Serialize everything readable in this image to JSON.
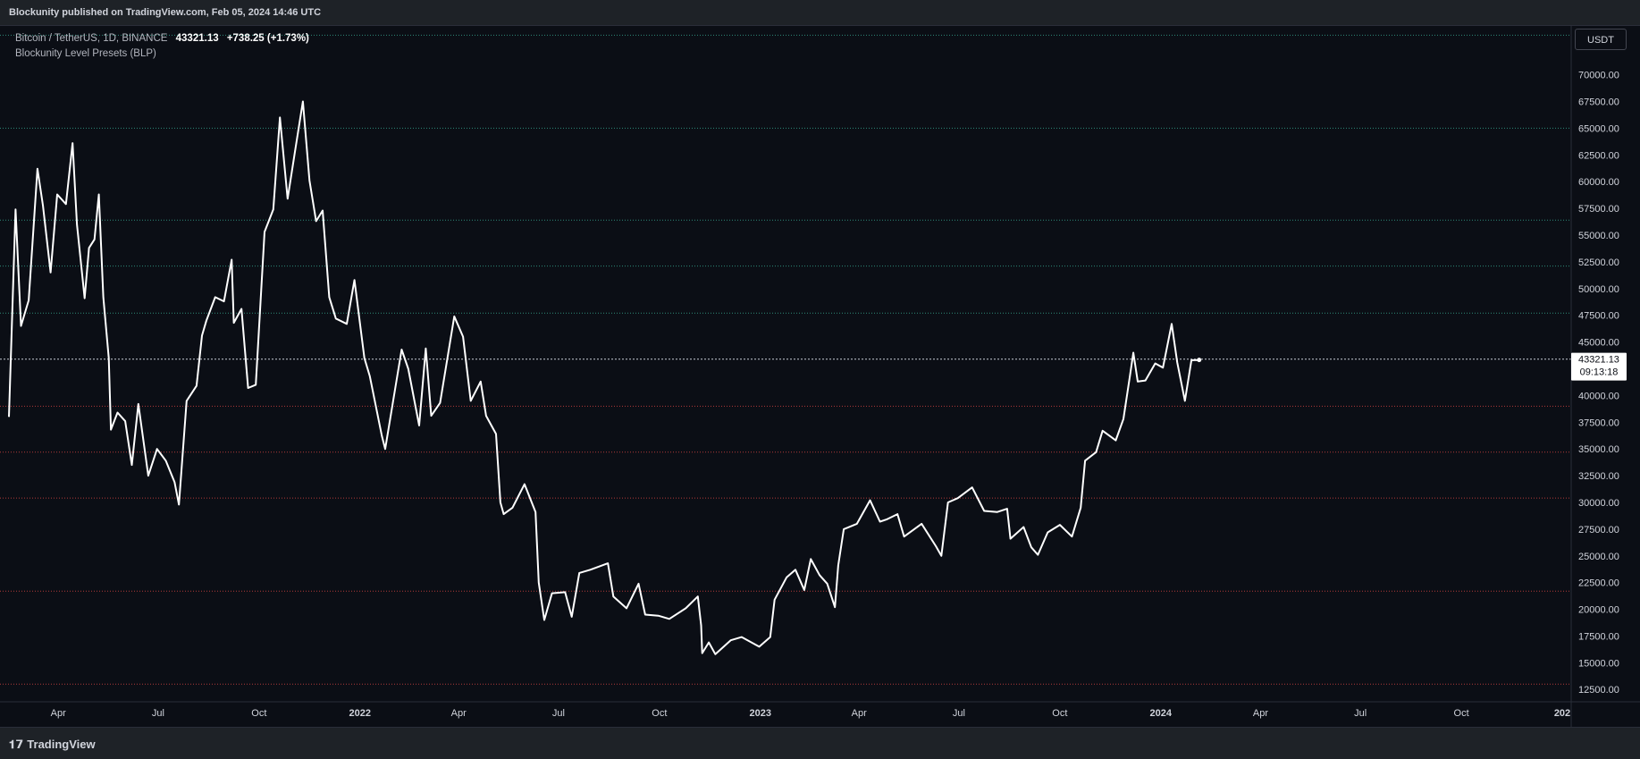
{
  "header": {
    "published": "Blockunity published on TradingView.com, Feb 05, 2024 14:46 UTC"
  },
  "legend": {
    "symbol": "Bitcoin / TetherUS, 1D, BINANCE",
    "price": "43321.13",
    "change": "+738.25 (+1.73%)",
    "indicator": "Blockunity Level Presets (BLP)"
  },
  "currency_button": "USDT",
  "price_tag": {
    "price": "43321.13",
    "countdown": "09:13:18"
  },
  "footer": {
    "brand": "TradingView",
    "icon": "tradingview-logo-icon"
  },
  "colors": {
    "background": "#0b0e15",
    "line": "#ffffff",
    "level_green": "#2e8b7a",
    "level_red": "#b23a3a",
    "axis_text": "#d1d4dc"
  },
  "chart_data": {
    "type": "line",
    "series": [
      {
        "values": [
          [
            "2021-02-15",
            38000
          ],
          [
            "2021-02-21",
            57400
          ],
          [
            "2021-02-26",
            46500
          ],
          [
            "2021-03-05",
            48900
          ],
          [
            "2021-03-13",
            61200
          ],
          [
            "2021-03-18",
            57800
          ],
          [
            "2021-03-25",
            51500
          ],
          [
            "2021-03-31",
            58800
          ],
          [
            "2021-04-08",
            57900
          ],
          [
            "2021-04-14",
            63600
          ],
          [
            "2021-04-18",
            56000
          ],
          [
            "2021-04-25",
            49100
          ],
          [
            "2021-04-29",
            53800
          ],
          [
            "2021-05-04",
            54600
          ],
          [
            "2021-05-08",
            58800
          ],
          [
            "2021-05-12",
            49200
          ],
          [
            "2021-05-17",
            43500
          ],
          [
            "2021-05-19",
            36800
          ],
          [
            "2021-05-25",
            38400
          ],
          [
            "2021-06-01",
            37600
          ],
          [
            "2021-06-07",
            33500
          ],
          [
            "2021-06-13",
            39200
          ],
          [
            "2021-06-22",
            32500
          ],
          [
            "2021-06-30",
            35000
          ],
          [
            "2021-07-08",
            33900
          ],
          [
            "2021-07-16",
            31900
          ],
          [
            "2021-07-20",
            29800
          ],
          [
            "2021-07-27",
            39500
          ],
          [
            "2021-08-05",
            40900
          ],
          [
            "2021-08-10",
            45600
          ],
          [
            "2021-08-14",
            47000
          ],
          [
            "2021-08-22",
            49200
          ],
          [
            "2021-08-30",
            48800
          ],
          [
            "2021-09-06",
            52700
          ],
          [
            "2021-09-08",
            46800
          ],
          [
            "2021-09-15",
            48100
          ],
          [
            "2021-09-21",
            40700
          ],
          [
            "2021-09-28",
            41000
          ],
          [
            "2021-10-06",
            55300
          ],
          [
            "2021-10-14",
            57400
          ],
          [
            "2021-10-20",
            66000
          ],
          [
            "2021-10-27",
            58400
          ],
          [
            "2021-11-03",
            63000
          ],
          [
            "2021-11-10",
            67500
          ],
          [
            "2021-11-16",
            60100
          ],
          [
            "2021-11-22",
            56300
          ],
          [
            "2021-11-28",
            57300
          ],
          [
            "2021-12-04",
            49200
          ],
          [
            "2021-12-10",
            47200
          ],
          [
            "2021-12-20",
            46700
          ],
          [
            "2021-12-27",
            50800
          ],
          [
            "2022-01-05",
            43500
          ],
          [
            "2022-01-10",
            41800
          ],
          [
            "2022-01-21",
            36200
          ],
          [
            "2022-01-24",
            35000
          ],
          [
            "2022-02-08",
            44300
          ],
          [
            "2022-02-14",
            42500
          ],
          [
            "2022-02-24",
            37200
          ],
          [
            "2022-03-02",
            44400
          ],
          [
            "2022-03-07",
            38100
          ],
          [
            "2022-03-15",
            39300
          ],
          [
            "2022-03-28",
            47400
          ],
          [
            "2022-04-05",
            45500
          ],
          [
            "2022-04-12",
            39500
          ],
          [
            "2022-04-21",
            41300
          ],
          [
            "2022-04-26",
            38100
          ],
          [
            "2022-05-05",
            36400
          ],
          [
            "2022-05-09",
            30000
          ],
          [
            "2022-05-12",
            28900
          ],
          [
            "2022-05-20",
            29500
          ],
          [
            "2022-05-31",
            31700
          ],
          [
            "2022-06-10",
            29100
          ],
          [
            "2022-06-13",
            22500
          ],
          [
            "2022-06-18",
            19000
          ],
          [
            "2022-06-25",
            21500
          ],
          [
            "2022-07-07",
            21600
          ],
          [
            "2022-07-13",
            19300
          ],
          [
            "2022-07-20",
            23400
          ],
          [
            "2022-07-30",
            23700
          ],
          [
            "2022-08-15",
            24300
          ],
          [
            "2022-08-20",
            21200
          ],
          [
            "2022-09-01",
            20100
          ],
          [
            "2022-09-12",
            22400
          ],
          [
            "2022-09-18",
            19500
          ],
          [
            "2022-09-30",
            19400
          ],
          [
            "2022-10-10",
            19100
          ],
          [
            "2022-10-25",
            20100
          ],
          [
            "2022-11-05",
            21200
          ],
          [
            "2022-11-08",
            18500
          ],
          [
            "2022-11-09",
            15900
          ],
          [
            "2022-11-15",
            16900
          ],
          [
            "2022-11-21",
            15800
          ],
          [
            "2022-12-05",
            17100
          ],
          [
            "2022-12-15",
            17400
          ],
          [
            "2022-12-31",
            16500
          ],
          [
            "2023-01-10",
            17400
          ],
          [
            "2023-01-14",
            20900
          ],
          [
            "2023-01-25",
            23000
          ],
          [
            "2023-02-02",
            23700
          ],
          [
            "2023-02-10",
            21800
          ],
          [
            "2023-02-16",
            24700
          ],
          [
            "2023-02-24",
            23200
          ],
          [
            "2023-03-03",
            22400
          ],
          [
            "2023-03-10",
            20200
          ],
          [
            "2023-03-13",
            24100
          ],
          [
            "2023-03-18",
            27500
          ],
          [
            "2023-03-30",
            28000
          ],
          [
            "2023-04-11",
            30200
          ],
          [
            "2023-04-20",
            28200
          ],
          [
            "2023-04-26",
            28400
          ],
          [
            "2023-05-06",
            28900
          ],
          [
            "2023-05-12",
            26800
          ],
          [
            "2023-05-28",
            28000
          ],
          [
            "2023-06-10",
            25900
          ],
          [
            "2023-06-15",
            25000
          ],
          [
            "2023-06-21",
            30000
          ],
          [
            "2023-06-30",
            30400
          ],
          [
            "2023-07-13",
            31400
          ],
          [
            "2023-07-24",
            29200
          ],
          [
            "2023-08-05",
            29100
          ],
          [
            "2023-08-14",
            29400
          ],
          [
            "2023-08-17",
            26600
          ],
          [
            "2023-08-29",
            27700
          ],
          [
            "2023-09-05",
            25800
          ],
          [
            "2023-09-11",
            25100
          ],
          [
            "2023-09-20",
            27200
          ],
          [
            "2023-10-01",
            27900
          ],
          [
            "2023-10-12",
            26800
          ],
          [
            "2023-10-20",
            29500
          ],
          [
            "2023-10-24",
            33900
          ],
          [
            "2023-11-03",
            34700
          ],
          [
            "2023-11-09",
            36700
          ],
          [
            "2023-11-21",
            35800
          ],
          [
            "2023-11-28",
            37800
          ],
          [
            "2023-12-04",
            41900
          ],
          [
            "2023-12-07",
            44000
          ],
          [
            "2023-12-11",
            41300
          ],
          [
            "2023-12-18",
            41400
          ],
          [
            "2023-12-27",
            43000
          ],
          [
            "2024-01-03",
            42600
          ],
          [
            "2024-01-11",
            46700
          ],
          [
            "2024-01-16",
            43100
          ],
          [
            "2024-01-23",
            39500
          ],
          [
            "2024-01-29",
            43300
          ],
          [
            "2024-02-05",
            43321
          ]
        ]
      }
    ],
    "y_ticks": [
      "12500.00",
      "15000.00",
      "17500.00",
      "20000.00",
      "22500.00",
      "25000.00",
      "27500.00",
      "30000.00",
      "32500.00",
      "35000.00",
      "37500.00",
      "40000.00",
      "42500.00",
      "45000.00",
      "47500.00",
      "50000.00",
      "52500.00",
      "55000.00",
      "57500.00",
      "60000.00",
      "62500.00",
      "65000.00",
      "67500.00",
      "70000.00"
    ],
    "x_ticks": [
      {
        "date": "2021-04-01",
        "label": "Apr",
        "bold": false
      },
      {
        "date": "2021-07-01",
        "label": "Jul",
        "bold": false
      },
      {
        "date": "2021-10-01",
        "label": "Oct",
        "bold": false
      },
      {
        "date": "2022-01-01",
        "label": "2022",
        "bold": true
      },
      {
        "date": "2022-04-01",
        "label": "Apr",
        "bold": false
      },
      {
        "date": "2022-07-01",
        "label": "Jul",
        "bold": false
      },
      {
        "date": "2022-10-01",
        "label": "Oct",
        "bold": false
      },
      {
        "date": "2023-01-01",
        "label": "2023",
        "bold": true
      },
      {
        "date": "2023-04-01",
        "label": "Apr",
        "bold": false
      },
      {
        "date": "2023-07-01",
        "label": "Jul",
        "bold": false
      },
      {
        "date": "2023-10-01",
        "label": "Oct",
        "bold": false
      },
      {
        "date": "2024-01-01",
        "label": "2024",
        "bold": true
      },
      {
        "date": "2024-04-01",
        "label": "Apr",
        "bold": false
      },
      {
        "date": "2024-07-01",
        "label": "Jul",
        "bold": false
      },
      {
        "date": "2024-10-01",
        "label": "Oct",
        "bold": false
      },
      {
        "date": "2025-01-01",
        "label": "202",
        "bold": true
      }
    ],
    "levels": [
      {
        "price": 73700,
        "color": "green"
      },
      {
        "price": 65000,
        "color": "green"
      },
      {
        "price": 56400,
        "color": "green"
      },
      {
        "price": 52100,
        "color": "green"
      },
      {
        "price": 47700,
        "color": "green"
      },
      {
        "price": 43400,
        "color": "white"
      },
      {
        "price": 39000,
        "color": "red"
      },
      {
        "price": 34700,
        "color": "red"
      },
      {
        "price": 30400,
        "color": "red"
      },
      {
        "price": 21700,
        "color": "red"
      },
      {
        "price": 13000,
        "color": "red"
      }
    ],
    "x_range": [
      "2021-02-15",
      "2025-01-01"
    ],
    "ylim": [
      11350,
      74650
    ],
    "grid": false,
    "legend": "top-left"
  }
}
